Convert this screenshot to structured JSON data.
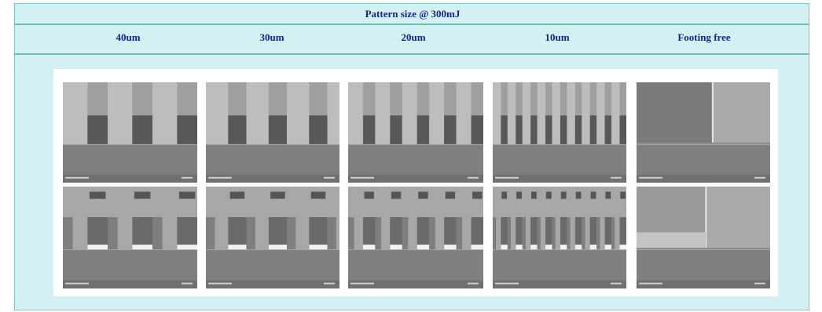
{
  "table": {
    "title": "Pattern size @ 300mJ",
    "columns": [
      "40um",
      "30um",
      "20um",
      "10um",
      "Footing free"
    ]
  }
}
